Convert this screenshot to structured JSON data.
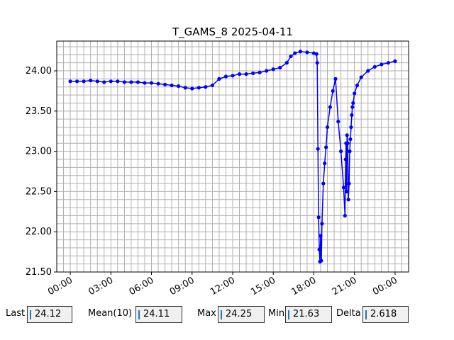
{
  "chart_data": {
    "type": "line",
    "title": "T_GAMS_8 2025-04-11",
    "xlabel": "",
    "ylabel": "",
    "x_range_hours": [
      -1.0,
      25.0
    ],
    "ylim": [
      21.5,
      24.37
    ],
    "y_ticks": [
      21.5,
      22.0,
      22.5,
      23.0,
      23.5,
      24.0
    ],
    "y_tick_labels": [
      "21.50",
      "22.00",
      "22.50",
      "23.00",
      "23.50",
      "24.00"
    ],
    "x_ticks": [
      0,
      3,
      6,
      9,
      12,
      15,
      18,
      21,
      24
    ],
    "x_tick_labels": [
      "00:00",
      "03:00",
      "06:00",
      "09:00",
      "12:00",
      "15:00",
      "18:00",
      "21:00",
      "00:00"
    ],
    "grid": true,
    "minor_grid": true,
    "series": [
      {
        "color": "#0000ff",
        "marker": "circle",
        "x_hours": [
          0.0,
          0.5,
          1.0,
          1.5,
          2.0,
          2.5,
          3.0,
          3.5,
          4.0,
          4.5,
          5.0,
          5.5,
          6.0,
          6.5,
          7.0,
          7.5,
          8.0,
          8.5,
          9.0,
          9.5,
          10.0,
          10.5,
          11.0,
          11.5,
          12.0,
          12.5,
          13.0,
          13.5,
          14.0,
          14.5,
          15.0,
          15.5,
          16.0,
          16.3,
          16.6,
          17.0,
          17.5,
          18.0,
          18.2,
          18.25,
          18.3,
          18.35,
          18.4,
          18.45,
          18.5,
          18.55,
          18.6,
          18.7,
          18.8,
          18.9,
          19.0,
          19.2,
          19.4,
          19.6,
          19.8,
          20.0,
          20.2,
          20.3,
          20.35,
          20.38,
          20.4,
          20.42,
          20.45,
          20.5,
          20.55,
          20.6,
          20.65,
          20.7,
          20.75,
          20.8,
          20.85,
          20.9,
          21.0,
          21.2,
          21.5,
          22.0,
          22.5,
          23.0,
          23.5,
          24.0
        ],
        "y_values": [
          23.87,
          23.87,
          23.87,
          23.88,
          23.87,
          23.86,
          23.87,
          23.87,
          23.86,
          23.86,
          23.86,
          23.85,
          23.85,
          23.84,
          23.83,
          23.82,
          23.81,
          23.79,
          23.78,
          23.79,
          23.8,
          23.82,
          23.9,
          23.93,
          23.94,
          23.96,
          23.96,
          23.97,
          23.98,
          24.0,
          24.02,
          24.04,
          24.1,
          24.18,
          24.22,
          24.24,
          24.23,
          24.22,
          24.21,
          24.1,
          23.03,
          22.18,
          21.78,
          21.63,
          21.95,
          21.64,
          22.1,
          22.6,
          22.85,
          23.05,
          23.3,
          23.55,
          23.75,
          23.9,
          23.37,
          23.0,
          22.55,
          22.2,
          22.9,
          23.1,
          22.6,
          22.5,
          23.2,
          23.1,
          22.4,
          22.6,
          23.0,
          23.15,
          23.3,
          23.45,
          23.55,
          23.6,
          23.72,
          23.82,
          23.92,
          24.0,
          24.05,
          24.08,
          24.1,
          24.12
        ]
      }
    ]
  },
  "stats": {
    "last_label": "Last",
    "last_value": "24.12",
    "mean_label": "Mean(10)",
    "mean_value": "24.11",
    "max_label": "Max",
    "max_value": "24.25",
    "min_label": "Min",
    "min_value": "21.63",
    "delta_label": "Delta",
    "delta_value": "2.618"
  }
}
